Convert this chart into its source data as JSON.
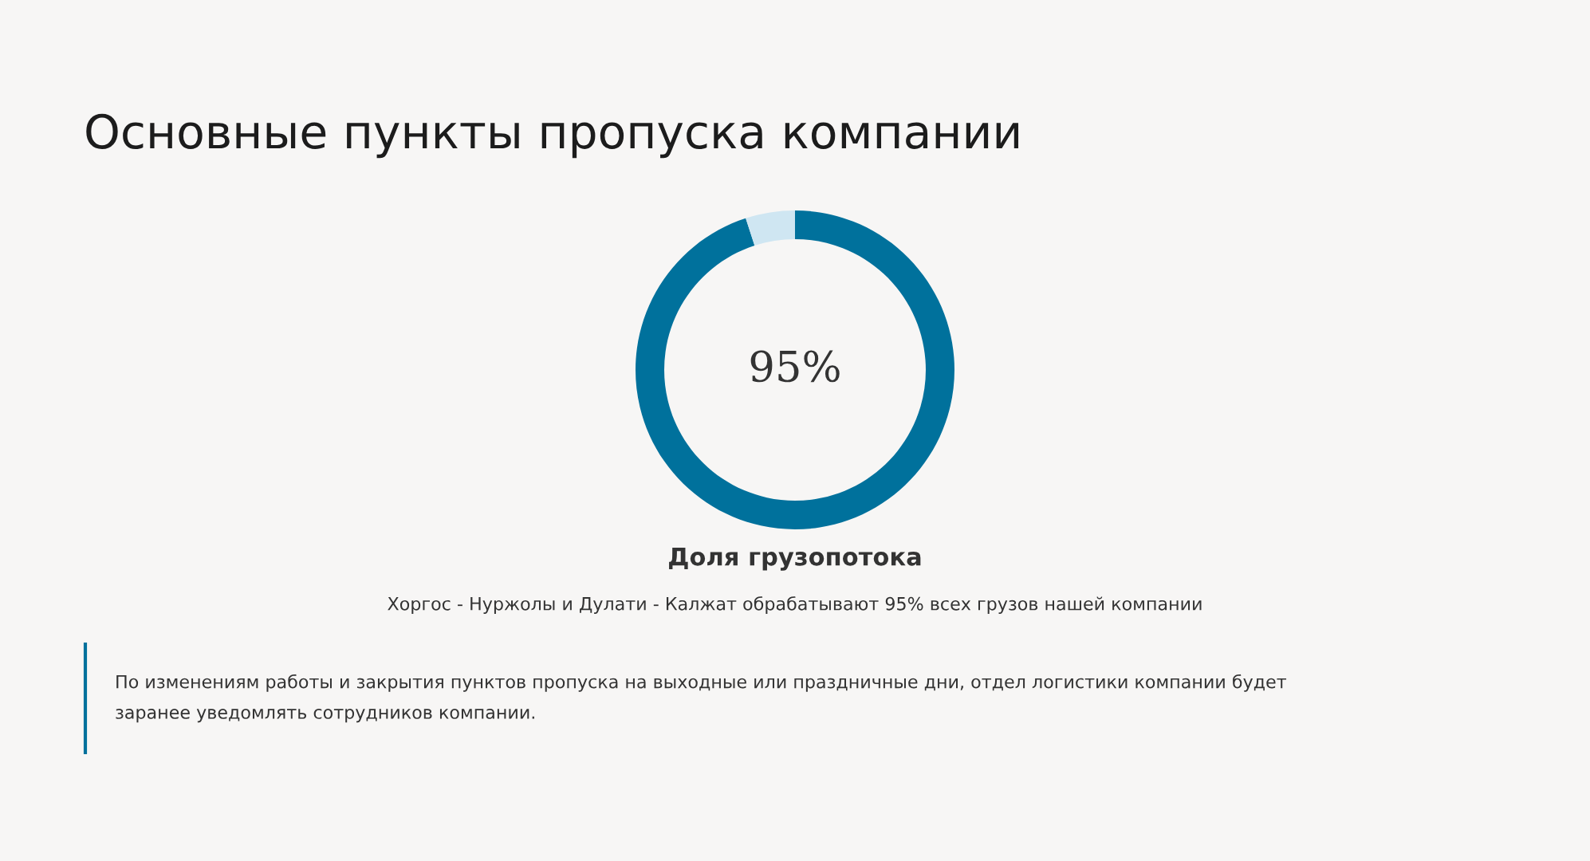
{
  "chart_data": {
    "type": "donut",
    "title": "Основные пункты пропуска компании",
    "subtitle": "Доля грузопотока",
    "categories": [
      null,
      null
    ],
    "values": [
      95,
      5
    ],
    "colors": [
      "#00719c",
      "#cfe6f2"
    ],
    "value_labels": [
      "95%",
      null
    ],
    "legend": false,
    "annotations": [
      "Хоргос - Нуржолы и Дулати - Калжат обрабатывают 95% всех грузов нашей компании",
      "По изменениям работы и закрытия пунктов пропуска на выходные или праздничные дни, отдел логистики компании будет\nзаранее уведомлять сотрудников компании."
    ]
  }
}
